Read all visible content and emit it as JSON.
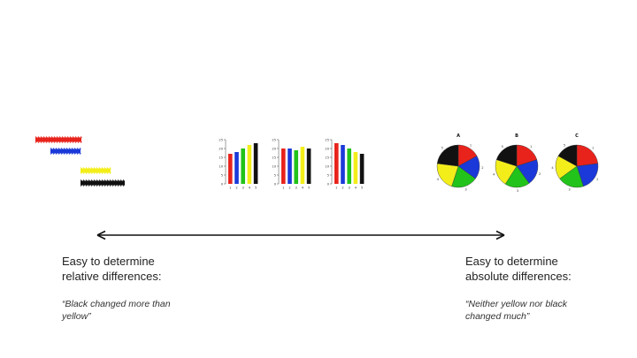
{
  "colors": {
    "red": "#e8231c",
    "blue": "#1b39d8",
    "green": "#22c31a",
    "yellow": "#f3ee1a",
    "black": "#111111"
  },
  "gantt": {
    "bars": [
      {
        "color": "red",
        "start": 0,
        "end": 52
      },
      {
        "color": "blue",
        "start": 17,
        "end": 51
      },
      {
        "color": "yellow",
        "start": 51,
        "end": 85
      },
      {
        "color": "black",
        "start": 51,
        "end": 101
      }
    ]
  },
  "bar_charts": {
    "ylim": [
      0,
      25
    ],
    "yticks": [
      "0",
      "5",
      "10",
      "15",
      "20",
      "25"
    ],
    "categories": [
      "1",
      "2",
      "3",
      "4",
      "5"
    ],
    "series_colors": [
      "red",
      "blue",
      "green",
      "yellow",
      "black"
    ],
    "panels": [
      {
        "values": [
          17,
          18,
          20,
          22,
          23
        ]
      },
      {
        "values": [
          20,
          20,
          19,
          21,
          20
        ]
      },
      {
        "values": [
          23,
          22,
          20,
          18,
          17
        ]
      }
    ]
  },
  "pie_charts": [
    {
      "title": "A",
      "slice_colors": [
        "red",
        "blue",
        "green",
        "yellow",
        "black"
      ],
      "values": [
        17,
        18,
        20,
        22,
        23
      ],
      "slice_labels": [
        "1",
        "2",
        "3",
        "4",
        "5"
      ]
    },
    {
      "title": "B",
      "slice_colors": [
        "red",
        "blue",
        "green",
        "yellow",
        "black"
      ],
      "values": [
        20,
        20,
        19,
        21,
        20
      ],
      "slice_labels": [
        "1",
        "2",
        "3",
        "4",
        "5"
      ]
    },
    {
      "title": "C",
      "slice_colors": [
        "red",
        "blue",
        "green",
        "yellow",
        "black"
      ],
      "values": [
        23,
        22,
        20,
        18,
        17
      ],
      "slice_labels": [
        "1",
        "2",
        "3",
        "4",
        "5"
      ]
    }
  ],
  "left_caption": {
    "line1": "Easy to determine",
    "line2": "relative differences:",
    "quote1": "“Black changed more than",
    "quote2": "yellow”"
  },
  "right_caption": {
    "line1": "Easy to determine",
    "line2": "absolute differences:",
    "quote1": "“Neither yellow nor black",
    "quote2": "changed much”"
  }
}
